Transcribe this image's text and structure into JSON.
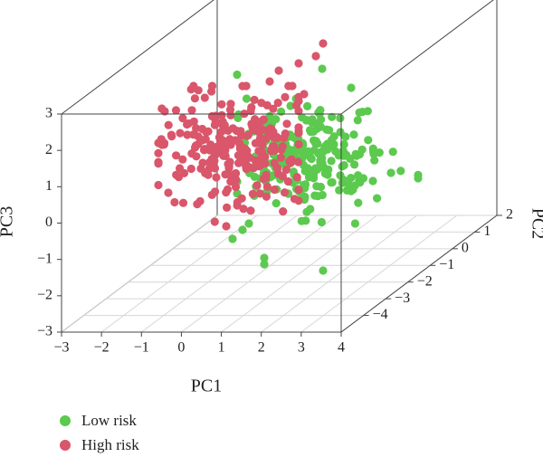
{
  "chart_data": {
    "type": "scatter",
    "projection": "3d",
    "axes": {
      "x": {
        "label": "PC1",
        "ticks": [
          "−3",
          "−2",
          "−1",
          "0",
          "1",
          "2",
          "3",
          "4"
        ],
        "range": [
          -3,
          4
        ]
      },
      "y": {
        "label": "PC2",
        "ticks": [
          "−4",
          "−3",
          "−2",
          "−1",
          "0",
          "1",
          "2"
        ],
        "range": [
          -5,
          2
        ]
      },
      "z": {
        "label": "PC3",
        "ticks": [
          "−3",
          "−2",
          "−1",
          "0",
          "1",
          "2",
          "3"
        ],
        "range": [
          -3,
          3
        ]
      }
    },
    "grid": "on floor plane (PC1 × PC2)",
    "legend": {
      "position": "bottom-left",
      "entries": [
        {
          "label": "Low risk",
          "color": "#5cc94f"
        },
        {
          "label": "High risk",
          "color": "#d9566b"
        }
      ]
    },
    "series": [
      {
        "name": "Low risk",
        "color": "#5cc94f",
        "points": []
      },
      {
        "name": "High risk",
        "color": "#d9566b",
        "points": []
      }
    ]
  }
}
